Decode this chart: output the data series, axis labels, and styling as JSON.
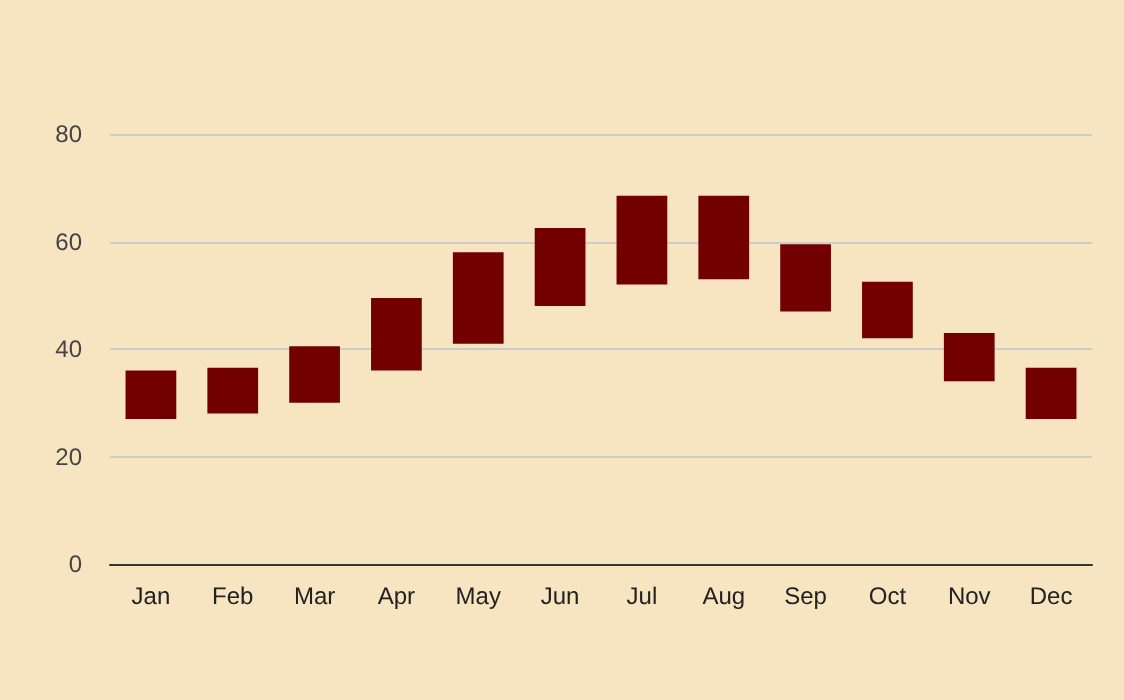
{
  "chart_data": {
    "type": "bar",
    "categories": [
      "Jan",
      "Feb",
      "Mar",
      "Apr",
      "May",
      "Jun",
      "Jul",
      "Aug",
      "Sep",
      "Oct",
      "Nov",
      "Dec"
    ],
    "base": [
      27,
      28,
      30,
      36,
      41,
      48,
      52,
      53,
      47,
      42,
      34,
      27
    ],
    "values": [
      9,
      8.5,
      10.5,
      13.5,
      17,
      14.5,
      16.5,
      15.5,
      12.5,
      10.5,
      9,
      9.5
    ],
    "color": "#720000",
    "ylim": [
      0,
      80
    ],
    "yticks": [
      0,
      20,
      40,
      60,
      80
    ],
    "grid": "y"
  }
}
